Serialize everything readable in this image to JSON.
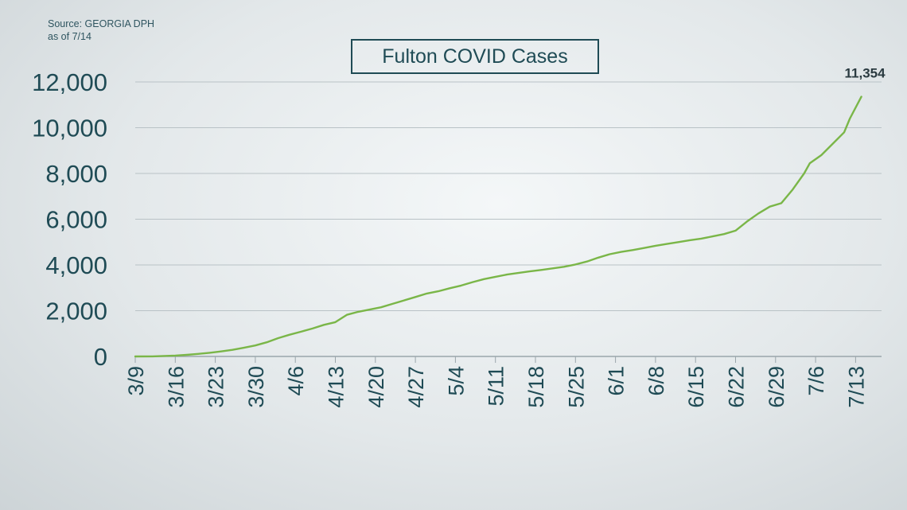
{
  "source": {
    "line1": "Source: GEORGIA DPH",
    "line2": "as of 7/14"
  },
  "chart_data": {
    "type": "line",
    "title": "Fulton COVID Cases",
    "xlabel": "",
    "ylabel": "",
    "ylim": [
      0,
      12000
    ],
    "yticks": [
      0,
      2000,
      4000,
      6000,
      8000,
      10000,
      12000
    ],
    "ytick_labels": [
      "0",
      "2,000",
      "4,000",
      "6,000",
      "8,000",
      "10,000",
      "12,000"
    ],
    "xtick_labels": [
      "3/9",
      "3/16",
      "3/23",
      "3/30",
      "4/6",
      "4/13",
      "4/20",
      "4/27",
      "5/4",
      "5/11",
      "5/18",
      "5/25",
      "6/1",
      "6/8",
      "6/15",
      "6/22",
      "6/29",
      "7/6",
      "7/13"
    ],
    "grid": "horizontal",
    "line_color": "#7ab648",
    "end_label": "11,354",
    "series": [
      {
        "x": [
          "3/9",
          "3/12",
          "3/14",
          "3/16",
          "3/18",
          "3/20",
          "3/22",
          "3/24",
          "3/26",
          "3/28",
          "3/30",
          "4/1",
          "4/3",
          "4/5",
          "4/7",
          "4/9",
          "4/11",
          "4/13",
          "4/15",
          "4/17",
          "4/19",
          "4/21",
          "4/23",
          "4/25",
          "4/27",
          "4/29",
          "5/1",
          "5/3",
          "5/5",
          "5/7",
          "5/9",
          "5/11",
          "5/13",
          "5/15",
          "5/17",
          "5/19",
          "5/21",
          "5/23",
          "5/25",
          "5/27",
          "5/29",
          "5/31",
          "6/2",
          "6/4",
          "6/6",
          "6/8",
          "6/10",
          "6/12",
          "6/14",
          "6/16",
          "6/18",
          "6/20",
          "6/22",
          "6/24",
          "6/26",
          "6/28",
          "6/30",
          "7/2",
          "7/4",
          "7/5",
          "7/7",
          "7/9",
          "7/11",
          "7/12",
          "7/14"
        ],
        "values": [
          0,
          5,
          20,
          40,
          70,
          110,
          160,
          220,
          290,
          380,
          480,
          620,
          800,
          950,
          1080,
          1220,
          1380,
          1500,
          1820,
          1950,
          2050,
          2150,
          2300,
          2450,
          2600,
          2750,
          2850,
          2980,
          3100,
          3250,
          3380,
          3480,
          3580,
          3650,
          3720,
          3780,
          3850,
          3920,
          4020,
          4150,
          4320,
          4470,
          4570,
          4650,
          4740,
          4840,
          4920,
          5000,
          5080,
          5150,
          5250,
          5350,
          5500,
          5900,
          6250,
          6550,
          6700,
          7300,
          8000,
          8450,
          8800,
          9300,
          9800,
          10400,
          11354
        ]
      }
    ]
  }
}
